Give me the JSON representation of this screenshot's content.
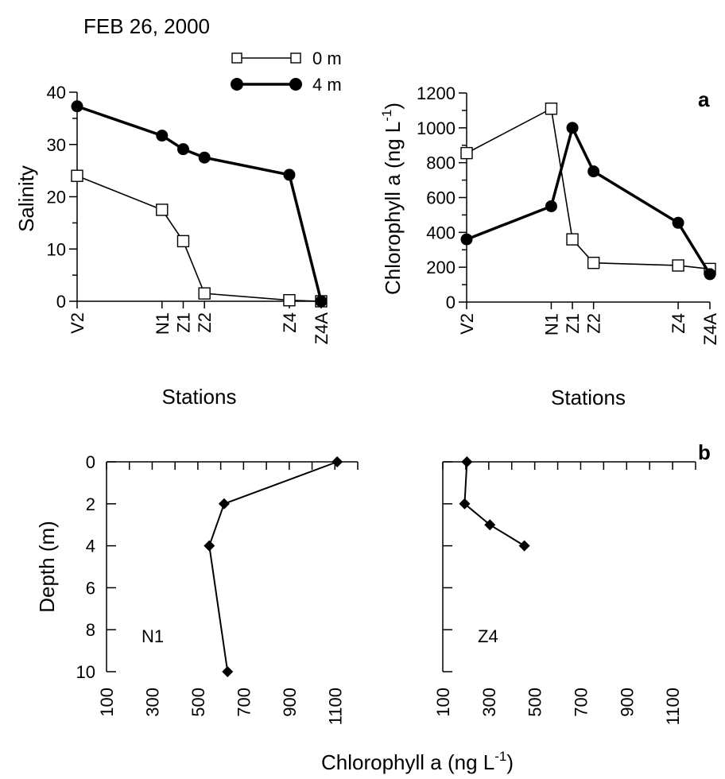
{
  "header": {
    "date": "FEB 26, 2000"
  },
  "panel_labels": {
    "a": "a",
    "b": "b"
  },
  "legend": {
    "entries": [
      "0 m",
      "4 m"
    ]
  },
  "chart_data": [
    {
      "id": "salinity",
      "type": "line",
      "xlabel": "Stations",
      "ylabel": "Salinity",
      "categories": [
        "V2",
        "N1",
        "Z1",
        "Z2",
        "Z4",
        "Z4A"
      ],
      "x_positions": [
        0,
        4,
        5,
        6,
        10,
        11.5
      ],
      "ylim": [
        0,
        40
      ],
      "yticks": [
        0,
        10,
        20,
        30,
        40
      ],
      "series": [
        {
          "name": "0 m",
          "marker": "open-square",
          "values": [
            24,
            17.5,
            11.5,
            1.5,
            0.2,
            0
          ]
        },
        {
          "name": "4 m",
          "marker": "filled-circle",
          "values": [
            37.3,
            31.7,
            29.1,
            27.5,
            24.2,
            0
          ]
        }
      ]
    },
    {
      "id": "chlorophyll-stations",
      "type": "line",
      "xlabel": "Stations",
      "ylabel": "Chlorophyll a (ng L",
      "ylabel_sup": "-1",
      "ylabel_close": ")",
      "categories": [
        "V2",
        "N1",
        "Z1",
        "Z2",
        "Z4",
        "Z4A"
      ],
      "x_positions": [
        0,
        4,
        5,
        6,
        10,
        11.5
      ],
      "ylim": [
        0,
        1200
      ],
      "yticks": [
        0,
        200,
        400,
        600,
        800,
        1000,
        1200
      ],
      "series": [
        {
          "name": "0 m",
          "marker": "open-square",
          "values": [
            855,
            1110,
            360,
            225,
            210,
            190
          ]
        },
        {
          "name": "4 m",
          "marker": "filled-circle",
          "values": [
            360,
            550,
            1000,
            750,
            455,
            160
          ]
        }
      ]
    },
    {
      "id": "depth-profile-n1",
      "type": "line",
      "station": "N1",
      "ylabel": "Depth (m)",
      "xlim": [
        100,
        1200
      ],
      "xticks": [
        100,
        300,
        500,
        700,
        900,
        1100
      ],
      "ylim": [
        0,
        10
      ],
      "yticks": [
        0,
        2,
        4,
        6,
        8,
        10
      ],
      "y_inverted": true,
      "points": [
        {
          "chlorophyll": 1110,
          "depth": 0
        },
        {
          "chlorophyll": 615,
          "depth": 2
        },
        {
          "chlorophyll": 550,
          "depth": 4
        },
        {
          "chlorophyll": 630,
          "depth": 10
        }
      ]
    },
    {
      "id": "depth-profile-z4",
      "type": "line",
      "station": "Z4",
      "xlim": [
        100,
        1200
      ],
      "xticks": [
        100,
        300,
        500,
        700,
        900,
        1100
      ],
      "ylim": [
        0,
        10
      ],
      "y_inverted": true,
      "points": [
        {
          "chlorophyll": 205,
          "depth": 0
        },
        {
          "chlorophyll": 195,
          "depth": 2
        },
        {
          "chlorophyll": 305,
          "depth": 3
        },
        {
          "chlorophyll": 455,
          "depth": 4
        }
      ]
    }
  ],
  "shared_xlabel": {
    "text": "Chlorophyll a (ng L",
    "sup": "-1",
    "close": ")"
  }
}
